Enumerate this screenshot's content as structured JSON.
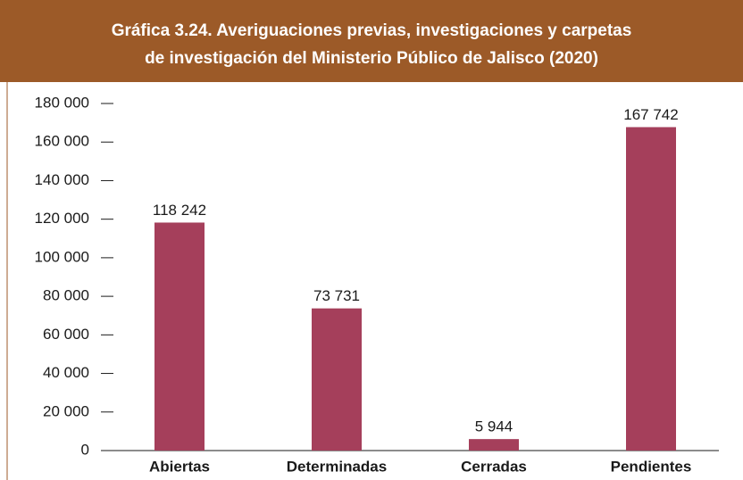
{
  "chart_data": {
    "type": "bar",
    "title": [
      "Gráfica 3.24. Averiguaciones previas, investigaciones y carpetas",
      "de investigación del Ministerio Público de Jalisco (2020)"
    ],
    "categories": [
      "Abiertas",
      "Determinadas",
      "Cerradas",
      "Pendientes"
    ],
    "values": [
      118242,
      73731,
      5944,
      167742
    ],
    "value_labels": [
      "118 242",
      "73 731",
      "5 944",
      "167 742"
    ],
    "color": "#a53f5b",
    "ylim": [
      0,
      180000
    ],
    "yticks": [
      0,
      {
        "value": 20000,
        "label": "20 000"
      },
      {
        "value": 40000,
        "label": "40 000"
      },
      {
        "value": 60000,
        "label": "60 000"
      },
      {
        "value": 80000,
        "label": "80 000"
      },
      {
        "value": 100000,
        "label": "100 000"
      },
      {
        "value": 120000,
        "label": "120 000"
      },
      {
        "value": 140000,
        "label": "140 000"
      },
      {
        "value": 160000,
        "label": "160 000"
      },
      {
        "value": 180000,
        "label": "180 000"
      }
    ],
    "grid": false
  }
}
